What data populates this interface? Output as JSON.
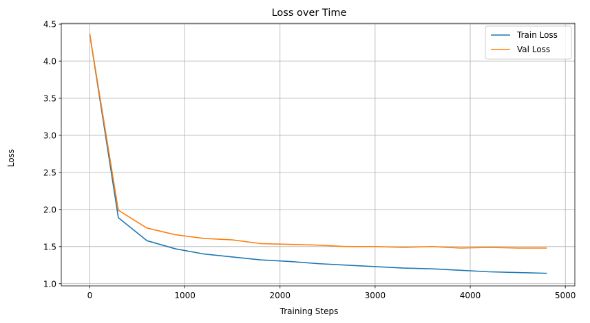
{
  "chart_data": {
    "type": "line",
    "title": "Loss over Time",
    "xlabel": "Training Steps",
    "ylabel": "Loss",
    "xlim": [
      -300,
      5100
    ],
    "ylim": [
      0.97,
      4.51
    ],
    "xticks": [
      0,
      1000,
      2000,
      3000,
      4000,
      5000
    ],
    "yticks": [
      1.0,
      1.5,
      2.0,
      2.5,
      3.0,
      3.5,
      4.0,
      4.5
    ],
    "grid": true,
    "legend_position": "top-right",
    "x": [
      0,
      300,
      600,
      900,
      1200,
      1500,
      1800,
      2100,
      2400,
      2700,
      3000,
      3300,
      3600,
      3900,
      4200,
      4500,
      4800
    ],
    "series": [
      {
        "name": "Train Loss",
        "color": "#1f77b4",
        "values": [
          4.36,
          1.89,
          1.58,
          1.47,
          1.4,
          1.36,
          1.32,
          1.3,
          1.27,
          1.25,
          1.23,
          1.21,
          1.2,
          1.18,
          1.16,
          1.15,
          1.14
        ]
      },
      {
        "name": "Val Loss",
        "color": "#ff7f0e",
        "values": [
          4.36,
          1.99,
          1.75,
          1.66,
          1.61,
          1.59,
          1.54,
          1.53,
          1.52,
          1.5,
          1.5,
          1.49,
          1.5,
          1.48,
          1.49,
          1.48,
          1.48
        ]
      }
    ]
  }
}
